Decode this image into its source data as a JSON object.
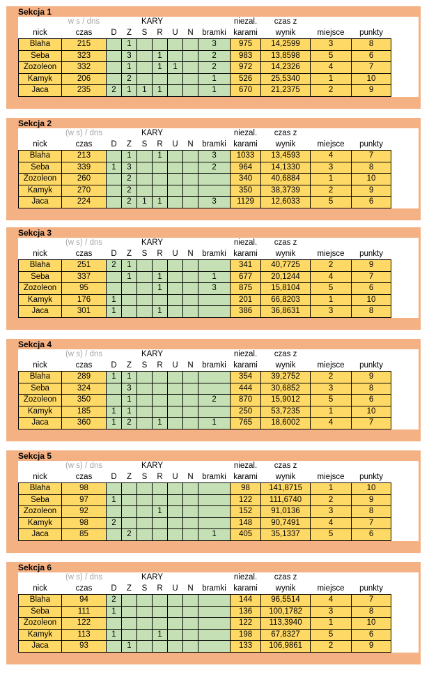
{
  "headers": {
    "ws_dns_first": "w s / dns",
    "ws_dns": "(w s) / dns",
    "kary": "KARY",
    "niezal": "niezal.",
    "czas_z": "czas z",
    "nick": "nick",
    "czas": "czas",
    "d": "D",
    "z": "Z",
    "s": "S",
    "r": "R",
    "u": "U",
    "n": "N",
    "bramki": "bramki",
    "karami": "karami",
    "wynik": "wynik",
    "miejsce": "miejsce",
    "punkty": "punkty"
  },
  "sections": [
    {
      "title": "Sekcja 1",
      "rows": [
        {
          "nick": "Blaha",
          "czas": "215",
          "d": "",
          "z": "1",
          "s": "",
          "r": "",
          "u": "",
          "n": "",
          "bramki": "3",
          "karami": "975",
          "wynik": "14,2599",
          "miejsce": "3",
          "punkty": "8"
        },
        {
          "nick": "Seba",
          "czas": "323",
          "d": "",
          "z": "3",
          "s": "",
          "r": "1",
          "u": "",
          "n": "",
          "bramki": "2",
          "karami": "983",
          "wynik": "13,8598",
          "miejsce": "5",
          "punkty": "6"
        },
        {
          "nick": "Zozoleon",
          "czas": "332",
          "d": "",
          "z": "1",
          "s": "",
          "r": "1",
          "u": "1",
          "n": "",
          "bramki": "2",
          "karami": "972",
          "wynik": "14,2326",
          "miejsce": "4",
          "punkty": "7"
        },
        {
          "nick": "Kamyk",
          "czas": "206",
          "d": "",
          "z": "2",
          "s": "",
          "r": "",
          "u": "",
          "n": "",
          "bramki": "1",
          "karami": "526",
          "wynik": "25,5340",
          "miejsce": "1",
          "punkty": "10"
        },
        {
          "nick": "Jaca",
          "czas": "235",
          "d": "2",
          "z": "1",
          "s": "1",
          "r": "1",
          "u": "",
          "n": "",
          "bramki": "1",
          "karami": "670",
          "wynik": "21,2375",
          "miejsce": "2",
          "punkty": "9"
        }
      ]
    },
    {
      "title": "Sekcja 2",
      "rows": [
        {
          "nick": "Blaha",
          "czas": "213",
          "d": "",
          "z": "1",
          "s": "",
          "r": "1",
          "u": "",
          "n": "",
          "bramki": "3",
          "karami": "1033",
          "wynik": "13,4593",
          "miejsce": "4",
          "punkty": "7"
        },
        {
          "nick": "Seba",
          "czas": "339",
          "d": "1",
          "z": "3",
          "s": "",
          "r": "",
          "u": "",
          "n": "",
          "bramki": "2",
          "karami": "964",
          "wynik": "14,1330",
          "miejsce": "3",
          "punkty": "8"
        },
        {
          "nick": "Zozoleon",
          "czas": "260",
          "d": "",
          "z": "2",
          "s": "",
          "r": "",
          "u": "",
          "n": "",
          "bramki": "",
          "karami": "340",
          "wynik": "40,6884",
          "miejsce": "1",
          "punkty": "10"
        },
        {
          "nick": "Kamyk",
          "czas": "270",
          "d": "",
          "z": "2",
          "s": "",
          "r": "",
          "u": "",
          "n": "",
          "bramki": "",
          "karami": "350",
          "wynik": "38,3739",
          "miejsce": "2",
          "punkty": "9"
        },
        {
          "nick": "Jaca",
          "czas": "224",
          "d": "",
          "z": "2",
          "s": "1",
          "r": "1",
          "u": "",
          "n": "",
          "bramki": "3",
          "karami": "1129",
          "wynik": "12,6033",
          "miejsce": "5",
          "punkty": "6"
        }
      ]
    },
    {
      "title": "Sekcja 3",
      "rows": [
        {
          "nick": "Blaha",
          "czas": "251",
          "d": "2",
          "z": "1",
          "s": "",
          "r": "",
          "u": "",
          "n": "",
          "bramki": "",
          "karami": "341",
          "wynik": "40,7725",
          "miejsce": "2",
          "punkty": "9"
        },
        {
          "nick": "Seba",
          "czas": "337",
          "d": "",
          "z": "1",
          "s": "",
          "r": "1",
          "u": "",
          "n": "",
          "bramki": "1",
          "karami": "677",
          "wynik": "20,1244",
          "miejsce": "4",
          "punkty": "7"
        },
        {
          "nick": "Zozoleon",
          "czas": "95",
          "d": "",
          "z": "",
          "s": "",
          "r": "1",
          "u": "",
          "n": "",
          "bramki": "3",
          "karami": "875",
          "wynik": "15,8104",
          "miejsce": "5",
          "punkty": "6"
        },
        {
          "nick": "Kamyk",
          "czas": "176",
          "d": "1",
          "z": "",
          "s": "",
          "r": "",
          "u": "",
          "n": "",
          "bramki": "",
          "karami": "201",
          "wynik": "66,8203",
          "miejsce": "1",
          "punkty": "10"
        },
        {
          "nick": "Jaca",
          "czas": "301",
          "d": "1",
          "z": "",
          "s": "",
          "r": "1",
          "u": "",
          "n": "",
          "bramki": "",
          "karami": "386",
          "wynik": "36,8631",
          "miejsce": "3",
          "punkty": "8"
        }
      ]
    },
    {
      "title": "Sekcja 4",
      "rows": [
        {
          "nick": "Blaha",
          "czas": "289",
          "d": "1",
          "z": "1",
          "s": "",
          "r": "",
          "u": "",
          "n": "",
          "bramki": "",
          "karami": "354",
          "wynik": "39,2752",
          "miejsce": "2",
          "punkty": "9"
        },
        {
          "nick": "Seba",
          "czas": "324",
          "d": "",
          "z": "3",
          "s": "",
          "r": "",
          "u": "",
          "n": "",
          "bramki": "",
          "karami": "444",
          "wynik": "30,6852",
          "miejsce": "3",
          "punkty": "8"
        },
        {
          "nick": "Zozoleon",
          "czas": "350",
          "d": "",
          "z": "1",
          "s": "",
          "r": "",
          "u": "",
          "n": "",
          "bramki": "2",
          "karami": "870",
          "wynik": "15,9012",
          "miejsce": "5",
          "punkty": "6"
        },
        {
          "nick": "Kamyk",
          "czas": "185",
          "d": "1",
          "z": "1",
          "s": "",
          "r": "",
          "u": "",
          "n": "",
          "bramki": "",
          "karami": "250",
          "wynik": "53,7235",
          "miejsce": "1",
          "punkty": "10"
        },
        {
          "nick": "Jaca",
          "czas": "360",
          "d": "1",
          "z": "2",
          "s": "",
          "r": "1",
          "u": "",
          "n": "",
          "bramki": "1",
          "karami": "765",
          "wynik": "18,6002",
          "miejsce": "4",
          "punkty": "7"
        }
      ]
    },
    {
      "title": "Sekcja 5",
      "rows": [
        {
          "nick": "Blaha",
          "czas": "98",
          "d": "",
          "z": "",
          "s": "",
          "r": "",
          "u": "",
          "n": "",
          "bramki": "",
          "karami": "98",
          "wynik": "141,8715",
          "miejsce": "1",
          "punkty": "10"
        },
        {
          "nick": "Seba",
          "czas": "97",
          "d": "1",
          "z": "",
          "s": "",
          "r": "",
          "u": "",
          "n": "",
          "bramki": "",
          "karami": "122",
          "wynik": "111,6740",
          "miejsce": "2",
          "punkty": "9"
        },
        {
          "nick": "Zozoleon",
          "czas": "92",
          "d": "",
          "z": "",
          "s": "",
          "r": "1",
          "u": "",
          "n": "",
          "bramki": "",
          "karami": "152",
          "wynik": "91,0136",
          "miejsce": "3",
          "punkty": "8"
        },
        {
          "nick": "Kamyk",
          "czas": "98",
          "d": "2",
          "z": "",
          "s": "",
          "r": "",
          "u": "",
          "n": "",
          "bramki": "",
          "karami": "148",
          "wynik": "90,7491",
          "miejsce": "4",
          "punkty": "7"
        },
        {
          "nick": "Jaca",
          "czas": "85",
          "d": "",
          "z": "2",
          "s": "",
          "r": "",
          "u": "",
          "n": "",
          "bramki": "1",
          "karami": "405",
          "wynik": "35,1337",
          "miejsce": "5",
          "punkty": "6"
        }
      ]
    },
    {
      "title": "Sekcja 6",
      "rows": [
        {
          "nick": "Blaha",
          "czas": "94",
          "d": "2",
          "z": "",
          "s": "",
          "r": "",
          "u": "",
          "n": "",
          "bramki": "",
          "karami": "144",
          "wynik": "96,5514",
          "miejsce": "4",
          "punkty": "7"
        },
        {
          "nick": "Seba",
          "czas": "111",
          "d": "1",
          "z": "",
          "s": "",
          "r": "",
          "u": "",
          "n": "",
          "bramki": "",
          "karami": "136",
          "wynik": "100,1782",
          "miejsce": "3",
          "punkty": "8"
        },
        {
          "nick": "Zozoleon",
          "czas": "122",
          "d": "",
          "z": "",
          "s": "",
          "r": "",
          "u": "",
          "n": "",
          "bramki": "",
          "karami": "122",
          "wynik": "113,3940",
          "miejsce": "1",
          "punkty": "10"
        },
        {
          "nick": "Kamyk",
          "czas": "113",
          "d": "1",
          "z": "",
          "s": "",
          "r": "1",
          "u": "",
          "n": "",
          "bramki": "",
          "karami": "198",
          "wynik": "67,8327",
          "miejsce": "5",
          "punkty": "6"
        },
        {
          "nick": "Jaca",
          "czas": "93",
          "d": "",
          "z": "1",
          "s": "",
          "r": "",
          "u": "",
          "n": "",
          "bramki": "",
          "karami": "133",
          "wynik": "106,9861",
          "miejsce": "2",
          "punkty": "9"
        }
      ]
    }
  ]
}
